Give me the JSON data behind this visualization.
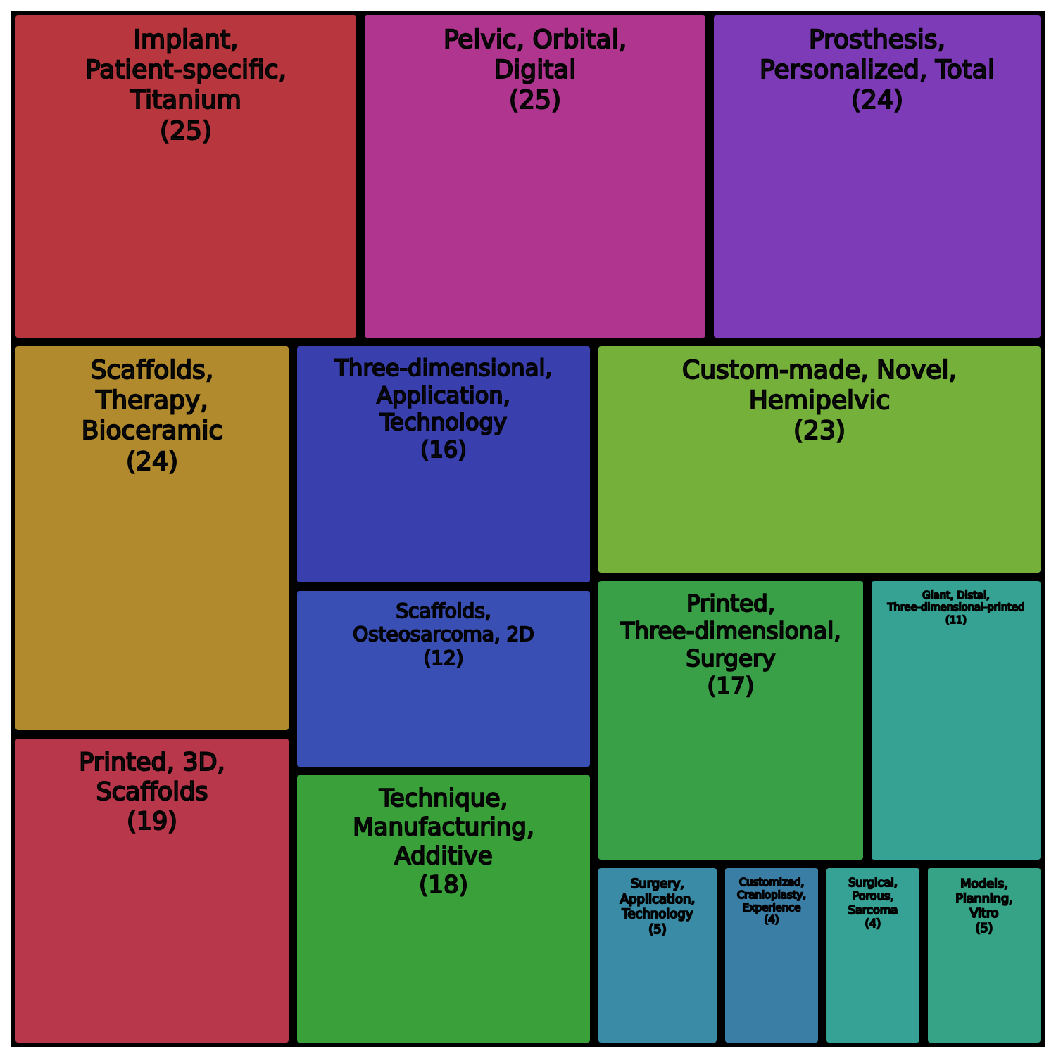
{
  "chart_data": {
    "type": "other",
    "categories": [
      "Implant, Patient-specific, Titanium",
      "Pelvic, Orbital, Digital",
      "Prosthesis, Personalized, Total",
      "Scaffolds, Therapy, Bioceramic",
      "Printed, 3D, Scaffolds",
      "Three-dimensional, Application, Technology",
      "Scaffolds, Osteosarcoma, 2D",
      "Technique, Manufacturing, Additive",
      "Custom-made, Novel, Hemipelvic",
      "Printed, Three-dimensional, Surgery",
      "Giant, Distal, Three-dimensional-printed",
      "Surgery, Application, Technology",
      "Customized, Cranioplasty, Experience",
      "Surgical, Porous, Sarcoma",
      "Models, Planning, Vitro"
    ],
    "values": [
      25,
      25,
      24,
      24,
      19,
      16,
      12,
      18,
      23,
      17,
      11,
      5,
      4,
      4,
      5
    ],
    "value_labels": [
      "(25)",
      "(25)",
      "(24)",
      "(24)",
      "(19)",
      "(16)",
      "(12)",
      "(18)",
      "(23)",
      "(17)",
      "(11)",
      "(5)",
      "(4)",
      "(4)",
      "(5)"
    ],
    "colors": [
      "#b8373e",
      "#b0358f",
      "#7d3bb8",
      "#b08a2c",
      "#b8374a",
      "#3a3fae",
      "#3a4fb4",
      "#3aa03a",
      "#74b03a",
      "#3aa048",
      "#36a293",
      "#3a8ca6",
      "#3a7ea6",
      "#36a296",
      "#36a286"
    ]
  }
}
